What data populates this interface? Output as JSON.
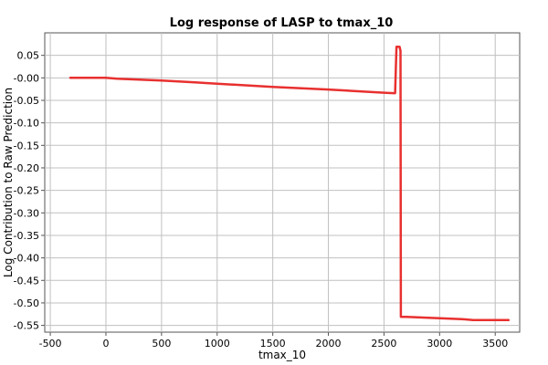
{
  "chart_data": {
    "type": "line",
    "title": "Log response of LASP to tmax_10",
    "xlabel": "tmax_10",
    "ylabel": "Log Contribution to Raw Prediction",
    "xlim": [
      -550,
      3720
    ],
    "ylim": [
      -0.565,
      0.1
    ],
    "xticks": [
      -500,
      0,
      500,
      1000,
      1500,
      2000,
      2500,
      3000,
      3500
    ],
    "xtick_labels": [
      "-500",
      "0",
      "500",
      "1000",
      "1500",
      "2000",
      "2500",
      "3000",
      "3500"
    ],
    "yticks": [
      0.05,
      0.0,
      -0.05,
      -0.1,
      -0.15,
      -0.2,
      -0.25,
      -0.3,
      -0.35,
      -0.4,
      -0.45,
      -0.5,
      -0.55
    ],
    "ytick_labels": [
      "0.05",
      "-0.00",
      "-0.05",
      "-0.10",
      "-0.15",
      "-0.20",
      "-0.25",
      "-0.30",
      "-0.35",
      "-0.40",
      "-0.45",
      "-0.50",
      "-0.55"
    ],
    "grid": true,
    "series": [
      {
        "color": "#e8302f",
        "x": [
          -320,
          0,
          100,
          300,
          500,
          800,
          1000,
          1500,
          2000,
          2500,
          2590,
          2600,
          2612,
          2640,
          2648,
          2652,
          2660,
          2700,
          3000,
          3200,
          3300,
          3620
        ],
        "y": [
          0.0,
          0.0,
          -0.002,
          -0.004,
          -0.006,
          -0.01,
          -0.013,
          -0.02,
          -0.026,
          -0.033,
          -0.034,
          -0.034,
          0.069,
          0.069,
          0.06,
          -0.531,
          -0.531,
          -0.531,
          -0.534,
          -0.536,
          -0.538,
          -0.538
        ]
      }
    ]
  }
}
